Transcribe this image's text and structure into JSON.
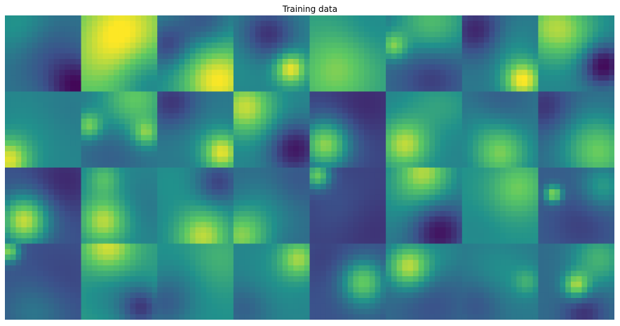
{
  "figure": {
    "title": "Training data"
  },
  "grid": {
    "rows": 4,
    "cols": 8,
    "colormap": [
      "#440154",
      "#3b528b",
      "#21918c",
      "#5ec962",
      "#fde725"
    ],
    "tiles": [
      {
        "base": 0.4,
        "blobs": [
          [
            0.2,
            0.15,
            0.3,
            0.15
          ],
          [
            0.55,
            0.5,
            0.35,
            -0.15
          ],
          [
            0.95,
            0.95,
            0.25,
            -0.35
          ]
        ]
      },
      {
        "base": 0.7,
        "blobs": [
          [
            0.55,
            0.2,
            0.35,
            0.3
          ],
          [
            0.25,
            0.6,
            0.3,
            0.1
          ],
          [
            0.9,
            0.9,
            0.3,
            -0.25
          ]
        ]
      },
      {
        "base": 0.45,
        "blobs": [
          [
            0.8,
            0.85,
            0.35,
            0.55
          ],
          [
            0.15,
            0.4,
            0.2,
            -0.25
          ],
          [
            0.6,
            0.1,
            0.25,
            -0.2
          ]
        ]
      },
      {
        "base": 0.45,
        "blobs": [
          [
            0.75,
            0.7,
            0.15,
            0.55
          ],
          [
            0.45,
            0.25,
            0.25,
            -0.3
          ],
          [
            0.1,
            0.6,
            0.25,
            0.05
          ]
        ]
      },
      {
        "base": 0.55,
        "blobs": [
          [
            0.3,
            0.8,
            0.35,
            0.2
          ],
          [
            0.75,
            0.2,
            0.3,
            -0.1
          ],
          [
            0.5,
            0.5,
            0.3,
            0.1
          ]
        ]
      },
      {
        "base": 0.35,
        "blobs": [
          [
            0.6,
            0.1,
            0.35,
            0.35
          ],
          [
            0.1,
            0.4,
            0.12,
            0.4
          ],
          [
            0.6,
            0.75,
            0.3,
            -0.2
          ]
        ]
      },
      {
        "base": 0.4,
        "blobs": [
          [
            0.8,
            0.85,
            0.18,
            0.6
          ],
          [
            0.2,
            0.2,
            0.25,
            -0.3
          ],
          [
            0.6,
            0.4,
            0.25,
            0.1
          ]
        ]
      },
      {
        "base": 0.45,
        "blobs": [
          [
            0.2,
            0.15,
            0.3,
            0.4
          ],
          [
            0.85,
            0.65,
            0.2,
            -0.45
          ],
          [
            0.55,
            0.3,
            0.25,
            0.1
          ]
        ]
      },
      {
        "base": 0.45,
        "blobs": [
          [
            0.05,
            0.9,
            0.2,
            0.5
          ],
          [
            0.75,
            0.25,
            0.3,
            -0.05
          ],
          [
            0.4,
            0.5,
            0.3,
            0.05
          ]
        ]
      },
      {
        "base": 0.4,
        "blobs": [
          [
            0.7,
            0.1,
            0.3,
            0.35
          ],
          [
            0.1,
            0.45,
            0.12,
            0.4
          ],
          [
            0.85,
            0.55,
            0.12,
            0.35
          ],
          [
            0.4,
            0.8,
            0.3,
            -0.1
          ]
        ]
      },
      {
        "base": 0.4,
        "blobs": [
          [
            0.85,
            0.8,
            0.18,
            0.55
          ],
          [
            0.2,
            0.15,
            0.25,
            -0.25
          ],
          [
            0.5,
            0.5,
            0.3,
            0.05
          ]
        ]
      },
      {
        "base": 0.45,
        "blobs": [
          [
            0.15,
            0.2,
            0.25,
            0.45
          ],
          [
            0.8,
            0.75,
            0.25,
            -0.4
          ],
          [
            0.5,
            0.5,
            0.3,
            0.05
          ]
        ]
      },
      {
        "base": 0.2,
        "blobs": [
          [
            0.2,
            0.7,
            0.22,
            0.6
          ],
          [
            0.7,
            0.2,
            0.3,
            -0.1
          ],
          [
            0.5,
            0.5,
            0.4,
            0.05
          ]
        ]
      },
      {
        "base": 0.45,
        "blobs": [
          [
            0.25,
            0.7,
            0.22,
            0.45
          ],
          [
            0.6,
            0.2,
            0.25,
            0.1
          ],
          [
            0.9,
            0.2,
            0.2,
            0.05
          ]
        ]
      },
      {
        "base": 0.4,
        "blobs": [
          [
            0.5,
            0.8,
            0.25,
            0.4
          ],
          [
            0.5,
            0.1,
            0.3,
            -0.1
          ],
          [
            0.2,
            0.4,
            0.2,
            0.05
          ]
        ]
      },
      {
        "base": 0.35,
        "blobs": [
          [
            0.8,
            0.8,
            0.3,
            0.4
          ],
          [
            0.1,
            0.2,
            0.25,
            -0.2
          ],
          [
            0.5,
            0.5,
            0.3,
            0.05
          ]
        ]
      },
      {
        "base": 0.25,
        "blobs": [
          [
            0.25,
            0.7,
            0.22,
            0.65
          ],
          [
            0.75,
            0.2,
            0.3,
            -0.15
          ],
          [
            0.5,
            0.4,
            0.3,
            0.05
          ]
        ]
      },
      {
        "base": 0.45,
        "blobs": [
          [
            0.3,
            0.7,
            0.22,
            0.45
          ],
          [
            0.3,
            0.15,
            0.15,
            0.25
          ],
          [
            0.8,
            0.5,
            0.25,
            -0.05
          ]
        ]
      },
      {
        "base": 0.45,
        "blobs": [
          [
            0.6,
            0.9,
            0.25,
            0.45
          ],
          [
            0.2,
            0.2,
            0.25,
            0.05
          ],
          [
            0.8,
            0.2,
            0.2,
            -0.25
          ]
        ]
      },
      {
        "base": 0.35,
        "blobs": [
          [
            0.1,
            0.9,
            0.25,
            0.45
          ],
          [
            0.8,
            0.2,
            0.25,
            -0.1
          ],
          [
            0.5,
            0.5,
            0.3,
            0.1
          ]
        ]
      },
      {
        "base": 0.2,
        "blobs": [
          [
            0.1,
            0.1,
            0.12,
            0.55
          ],
          [
            0.4,
            0.5,
            0.3,
            0.05
          ],
          [
            0.8,
            0.8,
            0.3,
            -0.05
          ]
        ]
      },
      {
        "base": 0.4,
        "blobs": [
          [
            0.5,
            0.05,
            0.25,
            0.45
          ],
          [
            0.7,
            0.85,
            0.25,
            -0.35
          ],
          [
            0.2,
            0.4,
            0.3,
            0.1
          ]
        ]
      },
      {
        "base": 0.5,
        "blobs": [
          [
            0.75,
            0.25,
            0.25,
            0.25
          ],
          [
            0.25,
            0.75,
            0.25,
            -0.05
          ],
          [
            0.5,
            0.5,
            0.3,
            0.05
          ]
        ]
      },
      {
        "base": 0.3,
        "blobs": [
          [
            0.2,
            0.35,
            0.08,
            0.55
          ],
          [
            0.85,
            0.25,
            0.2,
            0.25
          ],
          [
            0.55,
            0.75,
            0.3,
            -0.1
          ]
        ]
      },
      {
        "base": 0.25,
        "blobs": [
          [
            0.05,
            0.1,
            0.1,
            0.55
          ],
          [
            0.4,
            0.9,
            0.3,
            0.15
          ],
          [
            0.7,
            0.5,
            0.3,
            -0.05
          ]
        ]
      },
      {
        "base": 0.55,
        "blobs": [
          [
            0.35,
            0.05,
            0.25,
            0.4
          ],
          [
            0.8,
            0.85,
            0.2,
            -0.35
          ],
          [
            0.4,
            0.6,
            0.3,
            -0.1
          ]
        ]
      },
      {
        "base": 0.5,
        "blobs": [
          [
            0.8,
            0.2,
            0.3,
            0.15
          ],
          [
            0.1,
            0.8,
            0.25,
            -0.2
          ],
          [
            0.4,
            0.45,
            0.25,
            -0.05
          ]
        ]
      },
      {
        "base": 0.45,
        "blobs": [
          [
            0.85,
            0.2,
            0.18,
            0.4
          ],
          [
            0.15,
            0.85,
            0.25,
            -0.15
          ],
          [
            0.5,
            0.5,
            0.3,
            0.05
          ]
        ]
      },
      {
        "base": 0.25,
        "blobs": [
          [
            0.7,
            0.5,
            0.2,
            0.5
          ],
          [
            0.2,
            0.2,
            0.25,
            -0.05
          ],
          [
            0.8,
            0.9,
            0.25,
            0.05
          ]
        ]
      },
      {
        "base": 0.35,
        "blobs": [
          [
            0.3,
            0.3,
            0.2,
            0.55
          ],
          [
            0.8,
            0.15,
            0.25,
            0.1
          ],
          [
            0.6,
            0.8,
            0.3,
            -0.1
          ]
        ]
      },
      {
        "base": 0.4,
        "blobs": [
          [
            0.5,
            0.4,
            0.3,
            0.1
          ],
          [
            0.2,
            0.8,
            0.25,
            -0.15
          ],
          [
            0.85,
            0.5,
            0.12,
            0.2
          ]
        ]
      },
      {
        "base": 0.35,
        "blobs": [
          [
            0.5,
            0.55,
            0.12,
            0.5
          ],
          [
            0.8,
            0.2,
            0.25,
            0.3
          ],
          [
            0.6,
            0.9,
            0.2,
            -0.2
          ]
        ]
      }
    ]
  }
}
